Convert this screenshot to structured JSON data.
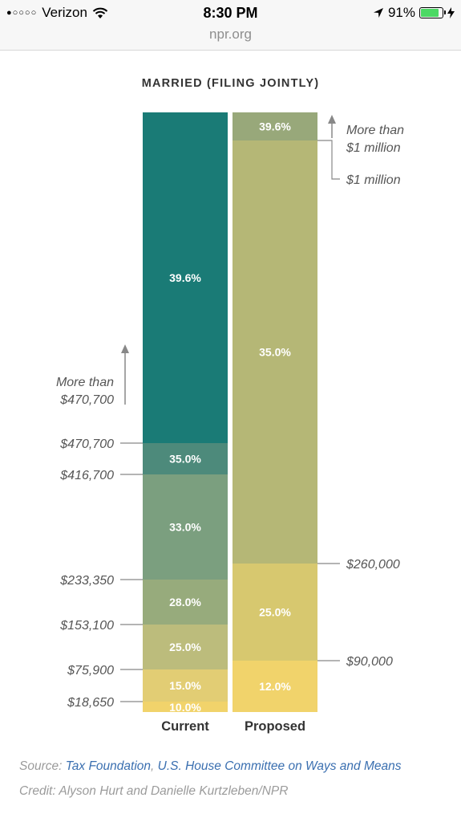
{
  "status": {
    "carrier": "Verizon",
    "signal_dots": "●○○○○",
    "time": "8:30 PM",
    "battery": "91%",
    "battery_level": 0.91
  },
  "browser": {
    "url": "npr.org"
  },
  "chart_data": {
    "type": "bar",
    "title": "MARRIED (FILING JOINTLY)",
    "series": [
      {
        "name": "Current",
        "segments": [
          {
            "rate": "10.0%",
            "from": 0,
            "to": 18650,
            "color": "#f1d36b"
          },
          {
            "rate": "15.0%",
            "from": 18650,
            "to": 75900,
            "color": "#e2cd74"
          },
          {
            "rate": "25.0%",
            "from": 75900,
            "to": 153100,
            "color": "#bcbc7c"
          },
          {
            "rate": "28.0%",
            "from": 153100,
            "to": 233350,
            "color": "#97ab7c"
          },
          {
            "rate": "33.0%",
            "from": 233350,
            "to": 416700,
            "color": "#7b9f7f"
          },
          {
            "rate": "35.0%",
            "from": 416700,
            "to": 470700,
            "color": "#4d8a7b"
          },
          {
            "rate": "39.6%",
            "from": 470700,
            "to": null,
            "color": "#1a7b76"
          }
        ],
        "thresholds": [
          "$18,650",
          "$75,900",
          "$153,100",
          "$233,350",
          "$416,700",
          "$470,700"
        ],
        "top_note_line1": "More than",
        "top_note_line2": "$470,700"
      },
      {
        "name": "Proposed",
        "segments": [
          {
            "rate": "12.0%",
            "from": 0,
            "to": 90000,
            "color": "#f1d36b"
          },
          {
            "rate": "25.0%",
            "from": 90000,
            "to": 260000,
            "color": "#d7c86f"
          },
          {
            "rate": "35.0%",
            "from": 260000,
            "to": 1000000,
            "color": "#b5b776"
          },
          {
            "rate": "39.6%",
            "from": 1000000,
            "to": null,
            "color": "#98a87a"
          }
        ],
        "thresholds": [
          "$90,000",
          "$260,000",
          "$1 million"
        ],
        "top_note_line1": "More than",
        "top_note_line2": "$1 million"
      }
    ]
  },
  "footer": {
    "source_prefix": "Source: ",
    "source_link1": "Tax Foundation",
    "source_sep": ", ",
    "source_link2": "U.S. House Committee on Ways and Means",
    "credit": "Credit: Alyson Hurt and Danielle Kurtzleben/NPR"
  }
}
